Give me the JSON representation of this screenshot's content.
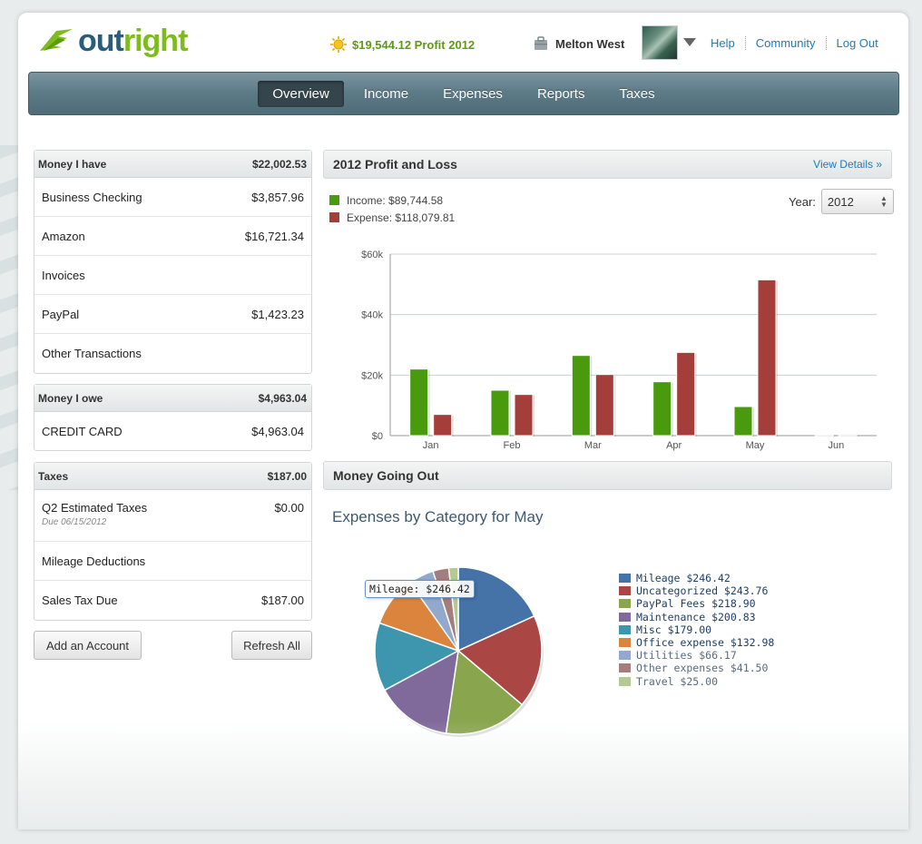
{
  "header": {
    "logo_part1": "out",
    "logo_part2": "right",
    "profit": "$19,544.12 Profit 2012",
    "user": "Melton West",
    "links": [
      "Help",
      "Community",
      "Log Out"
    ]
  },
  "nav": {
    "items": [
      "Overview",
      "Income",
      "Expenses",
      "Reports",
      "Taxes"
    ],
    "active": "Overview"
  },
  "money_have": {
    "title": "Money I have",
    "total": "$22,002.53",
    "rows": [
      {
        "label": "Business Checking",
        "value": "$3,857.96"
      },
      {
        "label": "Amazon",
        "value": "$16,721.34"
      },
      {
        "label": "Invoices",
        "value": ""
      },
      {
        "label": "PayPal",
        "value": "$1,423.23"
      },
      {
        "label": "Other Transactions",
        "value": ""
      }
    ]
  },
  "money_owe": {
    "title": "Money I owe",
    "total": "$4,963.04",
    "rows": [
      {
        "label": "CREDIT CARD",
        "value": "$4,963.04"
      }
    ]
  },
  "taxes": {
    "title": "Taxes",
    "total": "$187.00",
    "rows": [
      {
        "label": "Q2 Estimated Taxes",
        "sub": "Due 06/15/2012",
        "value": "$0.00"
      },
      {
        "label": "Mileage Deductions",
        "value": ""
      },
      {
        "label": "Sales Tax Due",
        "value": "$187.00"
      }
    ]
  },
  "buttons": {
    "add_account": "Add an Account",
    "refresh": "Refresh All"
  },
  "profit_loss": {
    "title": "2012 Profit and Loss",
    "view_details": "View Details »",
    "income_label": "Income: $89,744.58",
    "expense_label": "Expense: $118,079.81",
    "year_label": "Year:",
    "year": "2012"
  },
  "money_out": {
    "title": "Money Going Out",
    "pie_title": "Expenses by Category for May",
    "tooltip": "Mileage: $246.42"
  },
  "colors": {
    "income": "#4a9a0e",
    "expense": "#a43e3a",
    "accent": "#1f7bb8",
    "nav": "#5e7c88"
  },
  "chart_data": [
    {
      "type": "bar",
      "categories": [
        "Jan",
        "Feb",
        "Mar",
        "Apr",
        "May",
        "Jun"
      ],
      "series": [
        {
          "name": "Income",
          "values": [
            22000,
            15000,
            26500,
            17800,
            9600,
            400
          ]
        },
        {
          "name": "Expense",
          "values": [
            7000,
            13600,
            20200,
            27500,
            51500,
            500
          ]
        }
      ],
      "yticks": [
        "$0",
        "$20k",
        "$40k",
        "$60k"
      ],
      "ylim": [
        0,
        60000
      ],
      "grid": true
    },
    {
      "type": "pie",
      "categories": [
        "Mileage",
        "Uncategorized",
        "PayPal Fees",
        "Maintenance",
        "Misc",
        "Office expense",
        "Utilities",
        "Other expenses",
        "Travel"
      ],
      "values": [
        246.42,
        243.76,
        218.9,
        200.83,
        179.0,
        132.98,
        66.17,
        41.5,
        25.0
      ],
      "labels": [
        "Mileage $246.42",
        "Uncategorized $243.76",
        "PayPal Fees $218.90",
        "Maintenance $200.83",
        "Misc $179.00",
        "Office expense $132.98",
        "Utilities $66.17",
        "Other expenses $41.50",
        "Travel $25.00"
      ],
      "colors": [
        "#4572a7",
        "#aa4643",
        "#89a54e",
        "#80699b",
        "#3d96ae",
        "#db843d",
        "#92a8cd",
        "#a47d7c",
        "#b5ca92"
      ]
    }
  ]
}
